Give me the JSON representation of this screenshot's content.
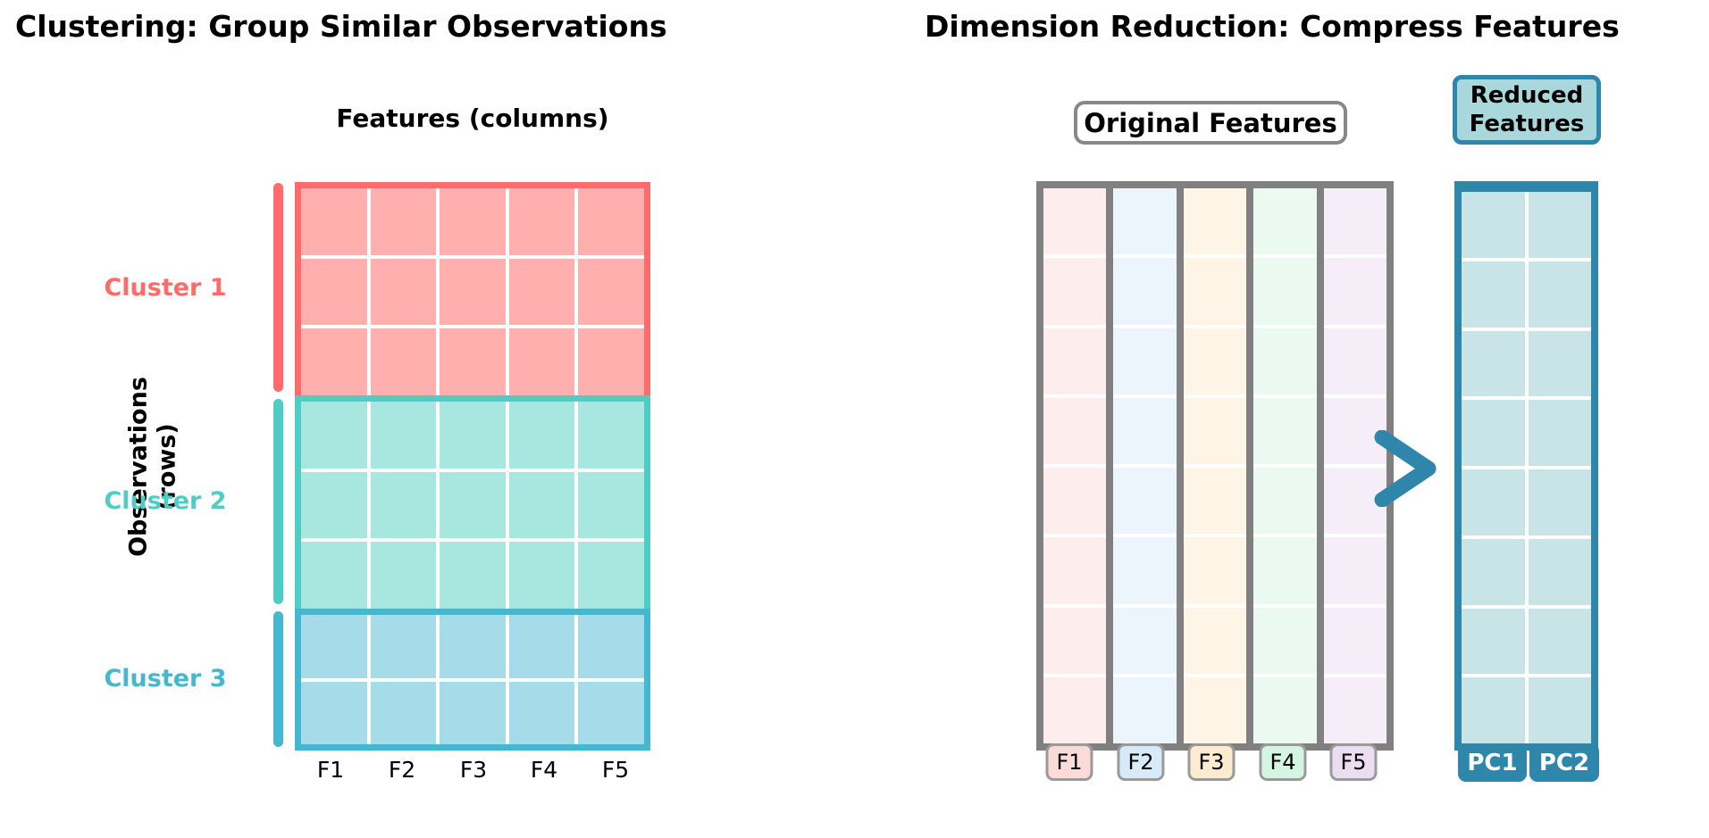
{
  "left": {
    "title": "Clustering: Group Similar Observations",
    "features_axis_label": "Features (columns)",
    "observations_label_line1": "Observations",
    "observations_label_line2": "(rows)",
    "feature_ticks": [
      "F1",
      "F2",
      "F3",
      "F4",
      "F5"
    ],
    "grid_columns": 5,
    "clusters": [
      {
        "label": "Cluster 1",
        "color": "#FF6B6B",
        "fill": "#FFB0AE",
        "rows": 3
      },
      {
        "label": "Cluster 2",
        "color": "#4ECDC4",
        "fill": "#A8E6E0",
        "rows": 3
      },
      {
        "label": "Cluster 3",
        "color": "#45B7D1",
        "fill": "#A6DBE9",
        "rows": 2
      }
    ]
  },
  "right": {
    "title": "Dimension Reduction: Compress Features",
    "original_box_label": "Original Features",
    "reduced_box_label_line1": "Reduced",
    "reduced_box_label_line2": "Features",
    "rows": 8,
    "original_features": [
      {
        "label": "F1",
        "column_fill": "#FDEDEC",
        "badge_fill": "#FADBD8"
      },
      {
        "label": "F2",
        "column_fill": "#EBF5FB",
        "badge_fill": "#D6EAF8"
      },
      {
        "label": "F3",
        "column_fill": "#FEF5E7",
        "badge_fill": "#FDEBD0"
      },
      {
        "label": "F4",
        "column_fill": "#EAFAF1",
        "badge_fill": "#D5F5E3"
      },
      {
        "label": "F5",
        "column_fill": "#F5EEF8",
        "badge_fill": "#EBDEF0"
      }
    ],
    "reduced_components": [
      {
        "label": "PC1"
      },
      {
        "label": "PC2"
      }
    ],
    "colors": {
      "accent_blue": "#2E86AB",
      "reduced_cell_fill": "#C8E4E6",
      "reduced_box_fill": "#A9D8DC",
      "frame_gray": "#808080"
    }
  }
}
